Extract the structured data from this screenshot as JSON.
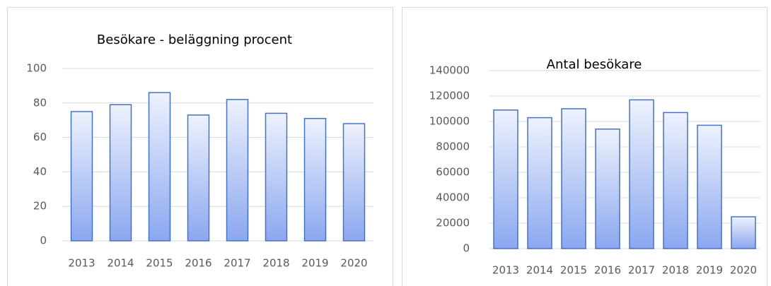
{
  "chart_data": [
    {
      "type": "bar",
      "title": "Besökare - beläggning procent",
      "categories": [
        "2013",
        "2014",
        "2015",
        "2016",
        "2017",
        "2018",
        "2019",
        "2020"
      ],
      "values": [
        75,
        79,
        86,
        73,
        82,
        74,
        71,
        68
      ],
      "color": "#4472c4",
      "ylim": [
        0,
        100
      ],
      "yticks": [
        0,
        20,
        40,
        60,
        80,
        100
      ],
      "grid": true
    },
    {
      "type": "bar",
      "title": "Antal besökare",
      "categories": [
        "2013",
        "2014",
        "2015",
        "2016",
        "2017",
        "2018",
        "2019",
        "2020"
      ],
      "values": [
        109000,
        103000,
        110000,
        94000,
        117000,
        107000,
        97000,
        25000
      ],
      "color": "#4472c4",
      "ylim": [
        0,
        140000
      ],
      "yticks": [
        0,
        20000,
        40000,
        60000,
        80000,
        100000,
        120000,
        140000
      ],
      "grid": true
    }
  ]
}
